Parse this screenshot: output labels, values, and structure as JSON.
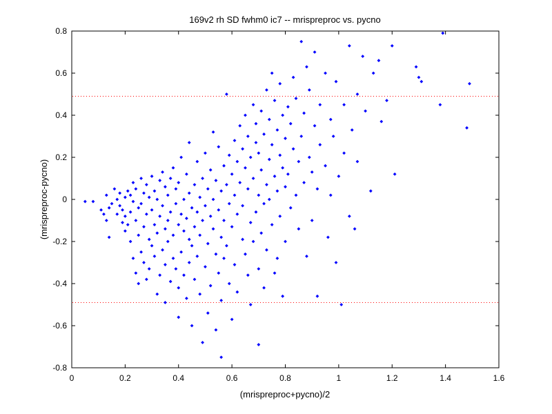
{
  "chart_data": {
    "type": "scatter",
    "title": "169v2 rh SD fwhm0 ic7 -- mrispreproc vs. pycno",
    "xlabel": "(mrispreproc+pycno)/2",
    "ylabel": "(mrispreproc-pycno)",
    "xlim": [
      0,
      1.6
    ],
    "ylim": [
      -0.8,
      0.8
    ],
    "x_ticks": [
      "0",
      "0.2",
      "0.4",
      "0.6",
      "0.8",
      "1",
      "1.2",
      "1.4",
      "1.6"
    ],
    "y_ticks": [
      "0.8",
      "0.6",
      "0.4",
      "0.2",
      "0",
      "-0.2",
      "-0.4",
      "-0.6",
      "-0.8"
    ],
    "reference_lines": [
      0.49,
      -0.49
    ],
    "reference_line_color": "#ff0000",
    "marker_color": "#0000ff",
    "grid": false,
    "series": [
      {
        "points": [
          [
            0.05,
            -0.01
          ],
          [
            0.08,
            -0.01
          ],
          [
            0.11,
            -0.05
          ],
          [
            0.12,
            -0.07
          ],
          [
            0.13,
            0.02
          ],
          [
            0.13,
            -0.1
          ],
          [
            0.14,
            -0.04
          ],
          [
            0.14,
            -0.18
          ],
          [
            0.15,
            -0.02
          ],
          [
            0.16,
            0.05
          ],
          [
            0.17,
            0.0
          ],
          [
            0.17,
            -0.07
          ],
          [
            0.18,
            -0.03
          ],
          [
            0.18,
            0.03
          ],
          [
            0.19,
            -0.11
          ],
          [
            0.19,
            -0.05
          ],
          [
            0.2,
            0.01
          ],
          [
            0.2,
            -0.08
          ],
          [
            0.2,
            -0.15
          ],
          [
            0.21,
            0.04
          ],
          [
            0.21,
            -0.12
          ],
          [
            0.22,
            0.02
          ],
          [
            0.22,
            -0.06
          ],
          [
            0.22,
            -0.2
          ],
          [
            0.23,
            -0.01
          ],
          [
            0.23,
            0.08
          ],
          [
            0.23,
            -0.28
          ],
          [
            0.24,
            -0.1
          ],
          [
            0.24,
            -0.35
          ],
          [
            0.24,
            0.05
          ],
          [
            0.25,
            -0.04
          ],
          [
            0.25,
            -0.17
          ],
          [
            0.25,
            -0.4
          ],
          [
            0.26,
            0.1
          ],
          [
            0.26,
            -0.02
          ],
          [
            0.26,
            -0.25
          ],
          [
            0.27,
            0.03
          ],
          [
            0.27,
            -0.13
          ],
          [
            0.27,
            -0.3
          ],
          [
            0.28,
            -0.07
          ],
          [
            0.28,
            0.07
          ],
          [
            0.28,
            -0.38
          ],
          [
            0.29,
            -0.19
          ],
          [
            0.29,
            0.01
          ],
          [
            0.29,
            -0.33
          ],
          [
            0.3,
            -0.05
          ],
          [
            0.3,
            0.11
          ],
          [
            0.3,
            -0.22
          ],
          [
            0.31,
            -0.12
          ],
          [
            0.31,
            0.04
          ],
          [
            0.31,
            -0.27
          ],
          [
            0.32,
            0.0
          ],
          [
            0.32,
            -0.16
          ],
          [
            0.32,
            -0.45
          ],
          [
            0.33,
            0.09
          ],
          [
            0.33,
            -0.08
          ],
          [
            0.33,
            -0.36
          ],
          [
            0.34,
            0.13
          ],
          [
            0.34,
            -0.03
          ],
          [
            0.34,
            -0.24
          ],
          [
            0.35,
            -0.49
          ],
          [
            0.35,
            0.06
          ],
          [
            0.35,
            -0.14
          ],
          [
            0.35,
            -0.31
          ],
          [
            0.36,
            0.02
          ],
          [
            0.36,
            -0.1
          ],
          [
            0.36,
            -0.2
          ],
          [
            0.37,
            0.1
          ],
          [
            0.37,
            -0.06
          ],
          [
            0.37,
            -0.39
          ],
          [
            0.38,
            -0.17
          ],
          [
            0.38,
            0.15
          ],
          [
            0.38,
            -0.28
          ],
          [
            0.39,
            -0.02
          ],
          [
            0.39,
            0.05
          ],
          [
            0.39,
            -0.33
          ],
          [
            0.4,
            -0.12
          ],
          [
            0.4,
            -0.42
          ],
          [
            0.4,
            0.08
          ],
          [
            0.4,
            -0.56
          ],
          [
            0.41,
            -0.07
          ],
          [
            0.41,
            0.2
          ],
          [
            0.41,
            -0.25
          ],
          [
            0.42,
            0.0
          ],
          [
            0.42,
            -0.15
          ],
          [
            0.42,
            -0.36
          ],
          [
            0.43,
            0.12
          ],
          [
            0.43,
            -0.09
          ],
          [
            0.43,
            -0.47
          ],
          [
            0.44,
            0.03
          ],
          [
            0.44,
            -0.19
          ],
          [
            0.44,
            -0.3
          ],
          [
            0.44,
            0.27
          ],
          [
            0.45,
            -0.04
          ],
          [
            0.45,
            -0.22
          ],
          [
            0.45,
            -0.6
          ],
          [
            0.46,
            0.07
          ],
          [
            0.46,
            -0.13
          ],
          [
            0.46,
            -0.38
          ],
          [
            0.47,
            0.18
          ],
          [
            0.47,
            -0.06
          ],
          [
            0.47,
            -0.27
          ],
          [
            0.48,
            0.01
          ],
          [
            0.48,
            -0.17
          ],
          [
            0.48,
            -0.45
          ],
          [
            0.49,
            0.1
          ],
          [
            0.49,
            -0.1
          ],
          [
            0.49,
            -0.68
          ],
          [
            0.5,
            0.22
          ],
          [
            0.5,
            -0.03
          ],
          [
            0.5,
            -0.32
          ],
          [
            0.51,
            0.05
          ],
          [
            0.51,
            -0.21
          ],
          [
            0.51,
            -0.54
          ],
          [
            0.52,
            0.14
          ],
          [
            0.52,
            -0.08
          ],
          [
            0.52,
            -0.41
          ],
          [
            0.53,
            0.32
          ],
          [
            0.53,
            -0.14
          ],
          [
            0.53,
            0.0
          ],
          [
            0.54,
            -0.26
          ],
          [
            0.54,
            0.09
          ],
          [
            0.54,
            -0.62
          ],
          [
            0.55,
            0.25
          ],
          [
            0.55,
            -0.05
          ],
          [
            0.55,
            -0.35
          ],
          [
            0.56,
            0.04
          ],
          [
            0.56,
            -0.18
          ],
          [
            0.56,
            -0.48
          ],
          [
            0.56,
            -0.75
          ],
          [
            0.57,
            0.16
          ],
          [
            0.57,
            -0.1
          ],
          [
            0.57,
            -0.28
          ],
          [
            0.58,
            0.5
          ],
          [
            0.58,
            0.07
          ],
          [
            0.58,
            -0.22
          ],
          [
            0.59,
            -0.02
          ],
          [
            0.59,
            0.21
          ],
          [
            0.59,
            -0.4
          ],
          [
            0.6,
            0.12
          ],
          [
            0.6,
            -0.13
          ],
          [
            0.6,
            -0.57
          ],
          [
            0.61,
            0.28
          ],
          [
            0.61,
            0.02
          ],
          [
            0.61,
            -0.31
          ],
          [
            0.62,
            0.18
          ],
          [
            0.62,
            -0.07
          ],
          [
            0.62,
            -0.44
          ],
          [
            0.63,
            0.35
          ],
          [
            0.63,
            0.08
          ],
          [
            0.64,
            -0.19
          ],
          [
            0.64,
            0.24
          ],
          [
            0.64,
            -0.03
          ],
          [
            0.65,
            0.4
          ],
          [
            0.65,
            -0.26
          ],
          [
            0.65,
            0.15
          ],
          [
            0.66,
            0.05
          ],
          [
            0.66,
            -0.36
          ],
          [
            0.66,
            0.3
          ],
          [
            0.67,
            -0.11
          ],
          [
            0.67,
            0.2
          ],
          [
            0.67,
            -0.5
          ],
          [
            0.68,
            0.45
          ],
          [
            0.68,
            0.1
          ],
          [
            0.68,
            -0.2
          ],
          [
            0.69,
            0.27
          ],
          [
            0.69,
            -0.06
          ],
          [
            0.69,
            0.36
          ],
          [
            0.7,
            0.02
          ],
          [
            0.7,
            -0.33
          ],
          [
            0.7,
            0.22
          ],
          [
            0.7,
            -0.69
          ],
          [
            0.71,
            0.14
          ],
          [
            0.71,
            -0.16
          ],
          [
            0.71,
            0.42
          ],
          [
            0.72,
            -0.02
          ],
          [
            0.72,
            0.31
          ],
          [
            0.72,
            -0.42
          ],
          [
            0.73,
            0.07
          ],
          [
            0.73,
            0.52
          ],
          [
            0.73,
            -0.24
          ],
          [
            0.74,
            0.19
          ],
          [
            0.74,
            0.0
          ],
          [
            0.74,
            0.38
          ],
          [
            0.75,
            -0.12
          ],
          [
            0.75,
            0.6
          ],
          [
            0.75,
            0.26
          ],
          [
            0.76,
            0.11
          ],
          [
            0.76,
            -0.35
          ],
          [
            0.76,
            0.47
          ],
          [
            0.77,
            0.04
          ],
          [
            0.77,
            0.33
          ],
          [
            0.77,
            -0.28
          ],
          [
            0.78,
            0.21
          ],
          [
            0.78,
            -0.08
          ],
          [
            0.78,
            0.55
          ],
          [
            0.79,
            0.15
          ],
          [
            0.79,
            0.4
          ],
          [
            0.79,
            -0.46
          ],
          [
            0.8,
            0.06
          ],
          [
            0.8,
            0.29
          ],
          [
            0.8,
            -0.2
          ],
          [
            0.81,
            0.44
          ],
          [
            0.81,
            0.12
          ],
          [
            0.82,
            0.36
          ],
          [
            0.82,
            -0.04
          ],
          [
            0.83,
            0.24
          ],
          [
            0.83,
            0.58
          ],
          [
            0.84,
            0.02
          ],
          [
            0.84,
            0.48
          ],
          [
            0.85,
            0.18
          ],
          [
            0.85,
            -0.14
          ],
          [
            0.86,
            0.3
          ],
          [
            0.86,
            0.75
          ],
          [
            0.87,
            0.08
          ],
          [
            0.87,
            0.41
          ],
          [
            0.88,
            -0.27
          ],
          [
            0.88,
            0.63
          ],
          [
            0.89,
            0.2
          ],
          [
            0.89,
            0.52
          ],
          [
            0.9,
            0.13
          ],
          [
            0.9,
            -0.1
          ],
          [
            0.91,
            0.35
          ],
          [
            0.91,
            0.7
          ],
          [
            0.92,
            -0.46
          ],
          [
            0.92,
            0.05
          ],
          [
            0.93,
            0.26
          ],
          [
            0.93,
            0.45
          ],
          [
            0.95,
            0.16
          ],
          [
            0.95,
            0.6
          ],
          [
            0.96,
            -0.18
          ],
          [
            0.97,
            0.38
          ],
          [
            0.97,
            0.02
          ],
          [
            0.98,
            0.3
          ],
          [
            0.99,
            -0.3
          ],
          [
            0.99,
            0.56
          ],
          [
            1.0,
            0.11
          ],
          [
            1.01,
            -0.5
          ],
          [
            1.02,
            0.45
          ],
          [
            1.02,
            0.22
          ],
          [
            1.04,
            0.73
          ],
          [
            1.04,
            -0.08
          ],
          [
            1.05,
            0.33
          ],
          [
            1.06,
            -0.14
          ],
          [
            1.07,
            0.5
          ],
          [
            1.07,
            0.18
          ],
          [
            1.09,
            0.68
          ],
          [
            1.1,
            0.42
          ],
          [
            1.12,
            0.04
          ],
          [
            1.13,
            0.6
          ],
          [
            1.15,
            0.66
          ],
          [
            1.16,
            0.37
          ],
          [
            1.18,
            0.47
          ],
          [
            1.2,
            0.73
          ],
          [
            1.21,
            0.12
          ],
          [
            1.29,
            0.63
          ],
          [
            1.3,
            0.58
          ],
          [
            1.31,
            0.56
          ],
          [
            1.38,
            0.45
          ],
          [
            1.39,
            0.79
          ],
          [
            1.48,
            0.34
          ],
          [
            1.49,
            0.55
          ]
        ]
      }
    ]
  }
}
